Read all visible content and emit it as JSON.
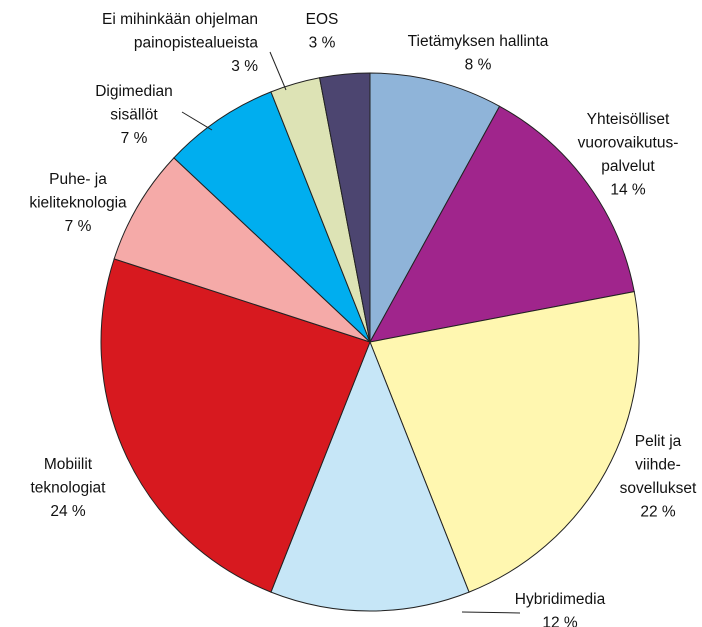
{
  "chart_data": {
    "type": "pie",
    "categories": [
      [
        "Tietämyksen hallinta"
      ],
      [
        "Yhteisölliset",
        "vuorovaikutus-",
        "palvelut"
      ],
      [
        "Pelit ja",
        "viihde-",
        "sovellukset"
      ],
      [
        "Hybridimedia"
      ],
      [
        "Mobiilit",
        "teknologiat"
      ],
      [
        "Puhe- ja",
        "kieliteknologia"
      ],
      [
        "Digimedian",
        "sisällöt"
      ],
      [
        "Ei mihinkään ohjelman",
        "painopistealueista"
      ],
      [
        "EOS"
      ]
    ],
    "values": [
      8,
      14,
      22,
      12,
      24,
      7,
      7,
      3,
      3
    ],
    "value_labels": [
      "8 %",
      "14 %",
      "22 %",
      "12 %",
      "24 %",
      "7 %",
      "7 %",
      "3 %",
      "3 %"
    ],
    "colors": [
      "#8fb4d9",
      "#a0258c",
      "#fff7b0",
      "#c6e6f7",
      "#d7191f",
      "#f5aaa8",
      "#00aeef",
      "#dde3b5",
      "#4c4570"
    ]
  }
}
